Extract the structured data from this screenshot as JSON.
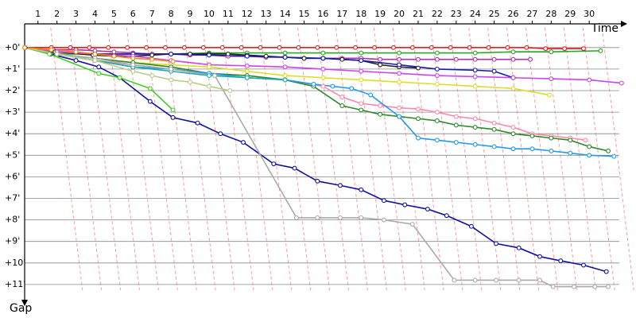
{
  "chart_data": {
    "type": "line",
    "x_label": "Time",
    "y_label": "Gap",
    "xlim": [
      0.3,
      32
    ],
    "ylim": [
      -1.1,
      12
    ],
    "xticks": [
      1,
      2,
      3,
      4,
      5,
      6,
      7,
      8,
      9,
      10,
      11,
      12,
      13,
      14,
      15,
      16,
      17,
      18,
      19,
      20,
      21,
      22,
      23,
      24,
      25,
      26,
      27,
      28,
      29,
      30
    ],
    "yticks": [
      {
        "value": 0,
        "label": "+0'"
      },
      {
        "value": 1,
        "label": "+1'"
      },
      {
        "value": 2,
        "label": "+2'"
      },
      {
        "value": 3,
        "label": "+3'"
      },
      {
        "value": 4,
        "label": "+4'"
      },
      {
        "value": 5,
        "label": "+5'"
      },
      {
        "value": 6,
        "label": "+6'"
      },
      {
        "value": 7,
        "label": "+7'"
      },
      {
        "value": 8,
        "label": "+8'"
      },
      {
        "value": 9,
        "label": "+9'"
      },
      {
        "value": 10,
        "label": "+10'"
      },
      {
        "value": 11,
        "label": "+11'"
      }
    ],
    "grid": true,
    "y_inverted": true,
    "series": [
      {
        "color": "#e02020",
        "x": [
          0.3,
          1.7,
          2.7,
          3.7,
          4.7,
          5.7,
          6.7,
          7.7,
          8.7,
          9.7,
          10.7,
          11.7,
          12.7,
          13.7,
          14.7,
          15.7,
          16.7,
          17.7,
          18.7,
          19.7,
          20.7,
          21.7,
          22.7,
          23.7,
          24.7,
          25.7,
          26.7,
          27.7,
          28.7,
          29.7
        ],
        "values": [
          0,
          0,
          0,
          0,
          0,
          0,
          0,
          0,
          0,
          0,
          0,
          0,
          0,
          0,
          0,
          0,
          0,
          0,
          0,
          0,
          0,
          0,
          0,
          0,
          0,
          0,
          0,
          0.05,
          0.05,
          0.05
        ]
      },
      {
        "color": "#22aa22",
        "x": [
          0.3,
          2,
          4,
          6,
          8,
          10,
          12,
          14,
          16,
          18,
          20,
          22,
          24,
          26,
          28,
          30.6
        ],
        "values": [
          0,
          0.3,
          0.3,
          0.3,
          0.3,
          0.25,
          0.25,
          0.25,
          0.25,
          0.25,
          0.25,
          0.25,
          0.25,
          0.2,
          0.2,
          0.15
        ]
      },
      {
        "color": "#aa33aa",
        "x": [
          0.3,
          1.8,
          3,
          4,
          5,
          6,
          7,
          8,
          9,
          10,
          11,
          12,
          13,
          14,
          15,
          16,
          17,
          18,
          19,
          20,
          21,
          22,
          23,
          24,
          25,
          26,
          26.9
        ],
        "values": [
          0,
          0.1,
          0.1,
          0.15,
          0.2,
          0.25,
          0.3,
          0.3,
          0.35,
          0.35,
          0.4,
          0.4,
          0.45,
          0.45,
          0.5,
          0.5,
          0.5,
          0.5,
          0.55,
          0.55,
          0.55,
          0.55,
          0.55,
          0.55,
          0.55,
          0.55,
          0.55
        ]
      },
      {
        "color": "#202020",
        "x": [
          0.3,
          1.9,
          3.9,
          5,
          6,
          7,
          8,
          9,
          10,
          11,
          12,
          13,
          14,
          15,
          16,
          17,
          18,
          19,
          20,
          21
        ],
        "values": [
          0,
          0.2,
          0.35,
          0.4,
          0.4,
          0.35,
          0.3,
          0.3,
          0.3,
          0.3,
          0.35,
          0.4,
          0.45,
          0.5,
          0.5,
          0.55,
          0.6,
          0.8,
          0.9,
          0.95
        ]
      },
      {
        "color": "#1a1aaa",
        "x": [
          0.3,
          2,
          4,
          6,
          8,
          10,
          12,
          14,
          16,
          18,
          20,
          22,
          24,
          25,
          26
        ],
        "values": [
          0,
          0.2,
          0.3,
          0.3,
          0.3,
          0.35,
          0.4,
          0.45,
          0.5,
          0.6,
          0.8,
          1.0,
          1.05,
          1.1,
          1.4
        ]
      },
      {
        "color": "#cc44ee",
        "x": [
          0.3,
          2,
          4,
          6,
          8,
          10,
          12,
          14,
          16,
          18,
          20,
          22,
          24,
          26,
          28,
          30,
          31.7
        ],
        "values": [
          0,
          0.2,
          0.3,
          0.4,
          0.6,
          0.8,
          0.85,
          0.9,
          1.0,
          1.1,
          1.2,
          1.3,
          1.35,
          1.4,
          1.45,
          1.5,
          1.65
        ]
      },
      {
        "color": "#dddd22",
        "x": [
          0.3,
          2,
          4,
          6,
          8,
          10,
          12,
          14,
          16,
          18,
          20,
          22,
          24,
          26,
          27.9
        ],
        "values": [
          0,
          0.3,
          0.5,
          0.7,
          0.8,
          0.9,
          1.1,
          1.3,
          1.4,
          1.5,
          1.6,
          1.7,
          1.8,
          1.9,
          2.2
        ]
      },
      {
        "color": "#ff88aa",
        "x": [
          0.3,
          2,
          4,
          6,
          8,
          10,
          12,
          14,
          16,
          17,
          18,
          19,
          20,
          21,
          22,
          23,
          24,
          25,
          26,
          27,
          28,
          29,
          29.8
        ],
        "values": [
          0,
          0.3,
          0.6,
          0.8,
          1.0,
          1.2,
          1.4,
          1.5,
          1.8,
          2.3,
          2.6,
          2.7,
          2.8,
          2.85,
          3.0,
          3.2,
          3.3,
          3.5,
          3.7,
          4.0,
          4.1,
          4.2,
          4.3
        ]
      },
      {
        "color": "#2a8a2a",
        "x": [
          0.3,
          2,
          4,
          6,
          8,
          10,
          12,
          14,
          15.5,
          17,
          18,
          19,
          20,
          21,
          22,
          23,
          24,
          25,
          26,
          27,
          28,
          29,
          30,
          31
        ],
        "values": [
          0,
          0.3,
          0.5,
          0.7,
          0.9,
          1.2,
          1.3,
          1.5,
          1.8,
          2.7,
          2.9,
          3.1,
          3.2,
          3.3,
          3.4,
          3.6,
          3.7,
          3.8,
          4.0,
          4.1,
          4.2,
          4.3,
          4.6,
          4.8
        ]
      },
      {
        "color": "#2299ee",
        "x": [
          0.3,
          2,
          4,
          6,
          8,
          10,
          12,
          14,
          15.5,
          16.5,
          17.5,
          18.5,
          20,
          21,
          22,
          23,
          24,
          25,
          26,
          27,
          28,
          29,
          30,
          31.3
        ],
        "values": [
          0,
          0.3,
          0.6,
          0.9,
          1.0,
          1.2,
          1.4,
          1.5,
          1.7,
          1.8,
          1.9,
          2.2,
          3.2,
          4.2,
          4.3,
          4.4,
          4.5,
          4.6,
          4.7,
          4.7,
          4.8,
          4.9,
          5.0,
          5.05
        ]
      },
      {
        "color": "#22aaaa",
        "x": [
          0.3,
          2,
          4,
          6,
          8,
          10,
          12,
          14
        ],
        "values": [
          0,
          0.3,
          0.6,
          0.9,
          1.1,
          1.3,
          1.4,
          1.5
        ]
      },
      {
        "color": "#1111a0",
        "x": [
          0.33,
          1.67,
          3.0,
          4.2,
          5.3,
          6.9,
          8.1,
          9.4,
          10.6,
          11.8,
          13.4,
          14.5,
          15.7,
          16.9,
          18.0,
          19.2,
          20.3,
          21.5,
          22.5,
          23.8,
          25.1,
          26.3,
          27.4,
          28.5,
          29.7,
          30.9
        ],
        "values": [
          0,
          0.3,
          0.6,
          0.9,
          1.4,
          2.5,
          3.25,
          3.5,
          4.0,
          4.4,
          5.4,
          5.6,
          6.2,
          6.4,
          6.6,
          7.1,
          7.3,
          7.5,
          7.8,
          8.3,
          9.1,
          9.3,
          9.7,
          9.9,
          10.1,
          10.4
        ]
      },
      {
        "color": "#aaaaaa",
        "x": [
          0.3,
          2,
          4,
          6,
          8,
          10.3,
          14.6,
          15.7,
          16.9,
          18.0,
          19.2,
          20.7,
          22.9,
          24.0,
          25.1,
          26.3,
          27.4,
          28.1,
          29.2,
          30.3,
          31.0
        ],
        "values": [
          0,
          0.3,
          0.5,
          0.8,
          1.0,
          1.3,
          7.9,
          7.9,
          7.9,
          7.9,
          8.0,
          8.2,
          10.8,
          10.8,
          10.8,
          10.8,
          10.8,
          11.1,
          11.1,
          11.1,
          11.1
        ]
      },
      {
        "color": "#44cc22",
        "x": [
          0.3,
          1.6,
          4.2,
          5.3,
          6.9,
          8.1
        ],
        "values": [
          0,
          0.3,
          1.2,
          1.4,
          1.9,
          2.9
        ]
      },
      {
        "color": "#bbcc88",
        "x": [
          0.3,
          2,
          4,
          6,
          7,
          8,
          9,
          10,
          11.1
        ],
        "values": [
          0,
          0.3,
          0.6,
          1.1,
          1.3,
          1.5,
          1.6,
          1.8,
          2.0
        ]
      },
      {
        "color": "#ff8800",
        "x": [
          0.3,
          1.7,
          3,
          4,
          5,
          6,
          7,
          8.1
        ],
        "values": [
          0,
          0.1,
          0.2,
          0.3,
          0.4,
          0.5,
          0.55,
          0.65
        ]
      }
    ]
  }
}
